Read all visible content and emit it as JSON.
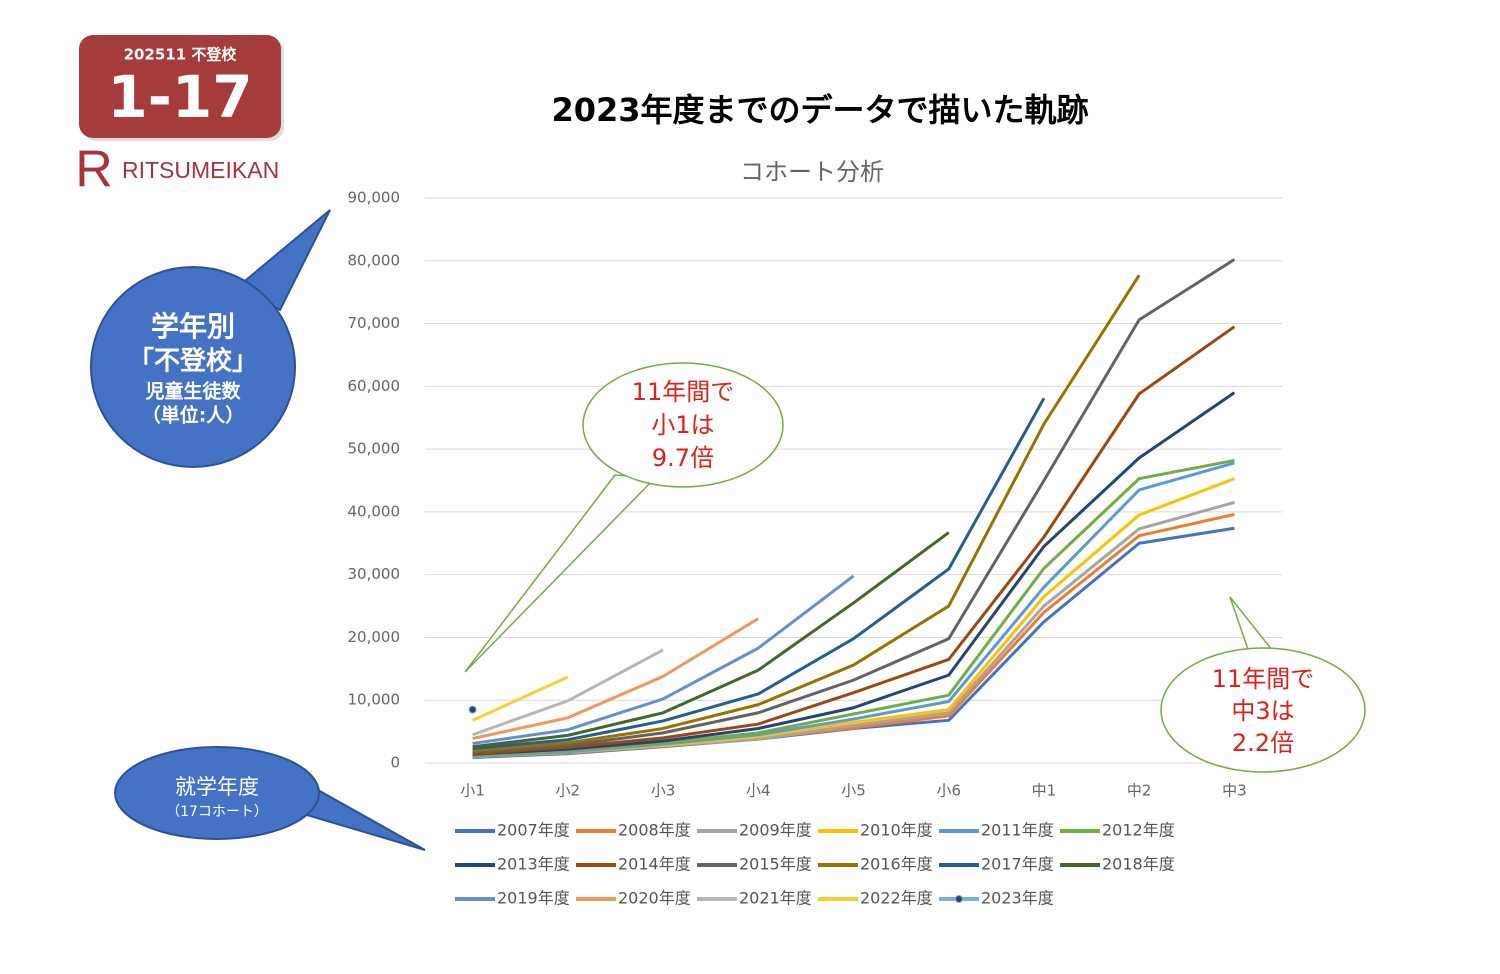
{
  "slide": {
    "badge_code": "202511 不登校",
    "badge_number": "1-17",
    "logo_letter": "R",
    "logo_text": "RITSUMEIKAN",
    "y_callout": [
      "学年別",
      "「不登校」",
      "児童生徒数",
      "（単位:人）"
    ],
    "x_callout": [
      "就学年度",
      "（17コホート）"
    ],
    "note_left": [
      "11年間で",
      "小1は",
      "9.7倍"
    ],
    "note_right": [
      "11年間で",
      "中3は",
      "2.2倍"
    ]
  },
  "chart_data": {
    "type": "line",
    "title": "2023年度までのデータで描いた軌跡",
    "subtitle": "コホート分析",
    "categories": [
      "小1",
      "小2",
      "小3",
      "小4",
      "小5",
      "小6",
      "中1",
      "中2",
      "中3"
    ],
    "ylim": [
      0,
      90000
    ],
    "yticks": [
      0,
      {
        "value": 10000,
        "label": "10,000"
      },
      {
        "value": 20000,
        "label": "20,000"
      },
      {
        "value": 30000,
        "label": "30,000"
      },
      {
        "value": 40000,
        "label": "40,000"
      },
      {
        "value": 50000,
        "label": "50,000"
      },
      {
        "value": 60000,
        "label": "60,000"
      },
      {
        "value": 70000,
        "label": "70,000"
      },
      {
        "value": 80000,
        "label": "80,000"
      },
      {
        "value": 90000,
        "label": "90,000"
      }
    ],
    "grid": true,
    "series": [
      {
        "name": "2007年度",
        "color": "#4472c4",
        "values": [
          880,
          1500,
          2600,
          3800,
          5500,
          6800,
          22500,
          35000,
          37400
        ]
      },
      {
        "name": "2008年度",
        "color": "#ed7d31",
        "values": [
          1000,
          1600,
          2700,
          3900,
          5600,
          7500,
          24000,
          36200,
          39600
        ]
      },
      {
        "name": "2009年度",
        "color": "#a5a5a5",
        "values": [
          1000,
          1700,
          2700,
          3800,
          6000,
          8000,
          25000,
          37300,
          41500
        ]
      },
      {
        "name": "2010年度",
        "color": "#ffc000",
        "values": [
          1100,
          1800,
          2800,
          4200,
          6500,
          8500,
          26500,
          39500,
          45300
        ]
      },
      {
        "name": "2011年度",
        "color": "#5b9bd5",
        "values": [
          1100,
          1800,
          3000,
          4500,
          7000,
          9800,
          28000,
          43500,
          47800
        ]
      },
      {
        "name": "2012年度",
        "color": "#70ad47",
        "values": [
          1200,
          2000,
          3200,
          4800,
          7800,
          10800,
          31000,
          45300,
          48200
        ]
      },
      {
        "name": "2013年度",
        "color": "#264478",
        "values": [
          1400,
          2200,
          3500,
          5500,
          8800,
          14000,
          34500,
          48600,
          59000
        ]
      },
      {
        "name": "2014年度",
        "color": "#9e480e",
        "values": [
          1500,
          2500,
          4000,
          6200,
          11200,
          16500,
          36000,
          58800,
          69500
        ]
      },
      {
        "name": "2015年度",
        "color": "#636363",
        "values": [
          1800,
          2800,
          4800,
          8000,
          13200,
          19800,
          45000,
          70600,
          80200
        ]
      },
      {
        "name": "2016年度",
        "color": "#997300",
        "values": [
          2000,
          3200,
          5500,
          9300,
          15600,
          25000,
          54000,
          77700,
          null
        ]
      },
      {
        "name": "2017年度",
        "color": "#255e91",
        "values": [
          2300,
          3700,
          6700,
          11000,
          19800,
          30900,
          58100,
          null,
          null
        ]
      },
      {
        "name": "2018年度",
        "color": "#43682b",
        "values": [
          2600,
          4400,
          8000,
          14800,
          25500,
          36700,
          null,
          null,
          null
        ]
      },
      {
        "name": "2019年度",
        "color": "#698ed0",
        "values": [
          3100,
          5300,
          10200,
          18300,
          29800,
          null,
          null,
          null,
          null
        ]
      },
      {
        "name": "2020年度",
        "color": "#f1975a",
        "values": [
          3900,
          7200,
          13800,
          23000,
          null,
          null,
          null,
          null,
          null
        ]
      },
      {
        "name": "2021年度",
        "color": "#b7b7b7",
        "values": [
          4500,
          9900,
          18000,
          null,
          null,
          null,
          null,
          null,
          null
        ]
      },
      {
        "name": "2022年度",
        "color": "#ffcd33",
        "values": [
          6800,
          13700,
          null,
          null,
          null,
          null,
          null,
          null,
          null
        ]
      },
      {
        "name": "2023年度",
        "color": "#7cafdd",
        "marker": true,
        "values": [
          8500,
          null,
          null,
          null,
          null,
          null,
          null,
          null,
          null
        ]
      }
    ]
  }
}
